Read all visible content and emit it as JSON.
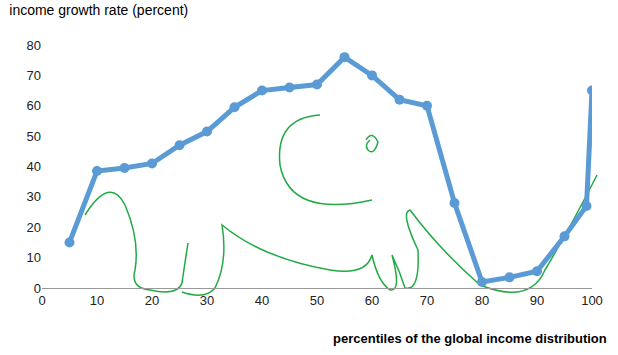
{
  "chart_data": {
    "type": "line",
    "title": "income growth rate (percent)",
    "x_label": "percentiles of the global income distribution",
    "x": [
      5,
      10,
      15,
      20,
      25,
      30,
      35,
      40,
      45,
      50,
      55,
      60,
      65,
      70,
      75,
      80,
      85,
      90,
      95,
      99,
      100
    ],
    "values": [
      15,
      38.5,
      39.5,
      41,
      47,
      51.5,
      59.5,
      65,
      66,
      67,
      76,
      70,
      62,
      60,
      28,
      2,
      3.5,
      5.5,
      17,
      27,
      65
    ],
    "color": "#5b9bd5",
    "marker": "circle",
    "line_style": "solid",
    "xlim": [
      0,
      100
    ],
    "xticks": [
      0,
      10,
      20,
      30,
      40,
      50,
      60,
      70,
      80,
      90,
      100
    ],
    "ylim": [
      0,
      80
    ],
    "yticks": [
      0,
      10,
      20,
      30,
      40,
      50,
      60,
      70,
      80
    ],
    "grid": false
  }
}
